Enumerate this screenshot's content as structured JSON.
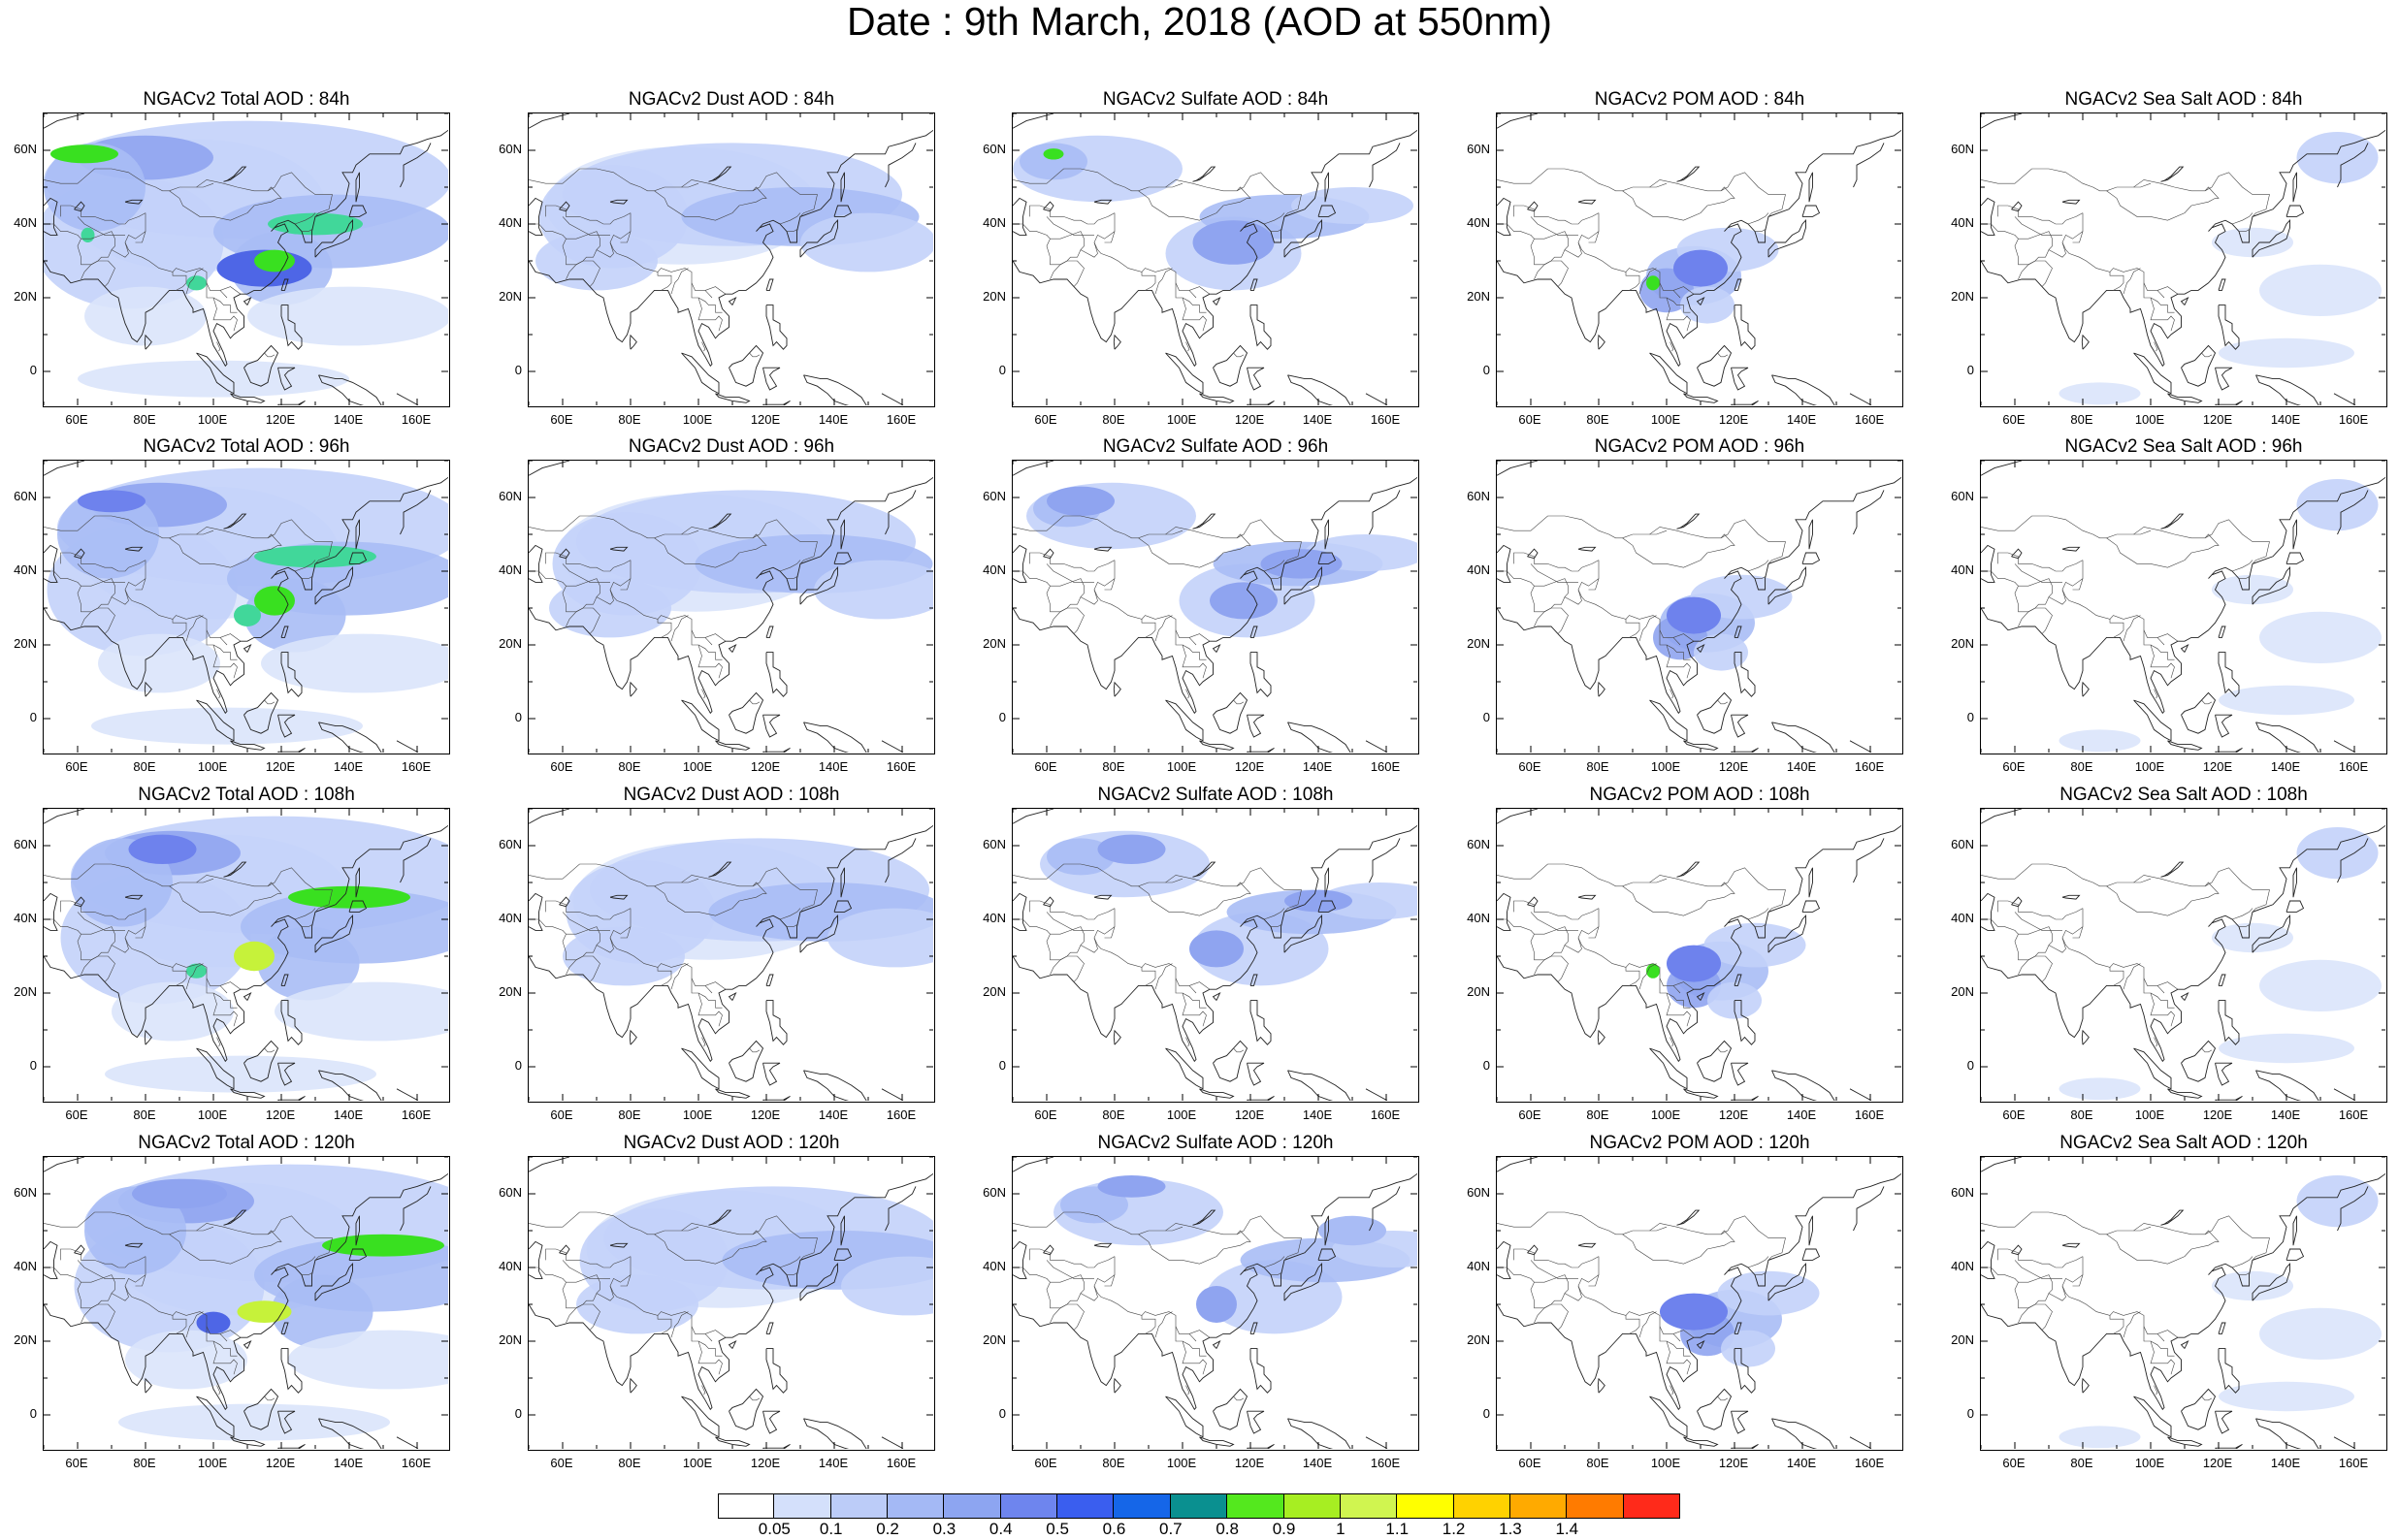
{
  "title": "Date : 9th March, 2018 (AOD at 550nm)",
  "panels": [
    [
      "NGACv2 Total AOD : 84h",
      "NGACv2 Dust AOD : 84h",
      "NGACv2 Sulfate AOD : 84h",
      "NGACv2 POM AOD : 84h",
      "NGACv2 Sea Salt AOD : 84h"
    ],
    [
      "NGACv2 Total AOD : 96h",
      "NGACv2 Dust AOD : 96h",
      "NGACv2 Sulfate AOD : 96h",
      "NGACv2 POM AOD : 96h",
      "NGACv2 Sea Salt AOD : 96h"
    ],
    [
      "NGACv2 Total AOD : 108h",
      "NGACv2 Dust AOD : 108h",
      "NGACv2 Sulfate AOD : 108h",
      "NGACv2 POM AOD : 108h",
      "NGACv2 Sea Salt AOD : 108h"
    ],
    [
      "NGACv2 Total AOD : 120h",
      "NGACv2 Dust AOD : 120h",
      "NGACv2 Sulfate AOD : 120h",
      "NGACv2 POM AOD : 120h",
      "NGACv2 Sea Salt  AOD : 120h"
    ]
  ],
  "lat_ticks": [
    "60N",
    "40N",
    "20N",
    "0"
  ],
  "lon_ticks": [
    "60E",
    "80E",
    "100E",
    "120E",
    "140E",
    "160E"
  ],
  "colorbar": {
    "labels": [
      "0.05",
      "0.1",
      "0.2",
      "0.3",
      "0.4",
      "0.5",
      "0.6",
      "0.7",
      "0.8",
      "0.9",
      "1",
      "1.1",
      "1.2",
      "1.3",
      "1.4"
    ],
    "colors": [
      "#ffffff",
      "#d4e0fb",
      "#bcccf8",
      "#a4b9f5",
      "#8da5f1",
      "#6e85ee",
      "#3a5eef",
      "#1566e8",
      "#0a9090",
      "#54e81e",
      "#a7ee22",
      "#d0f550",
      "#ffff00",
      "#ffd200",
      "#ffaa00",
      "#ff7b00",
      "#ff2a1a"
    ]
  }
}
